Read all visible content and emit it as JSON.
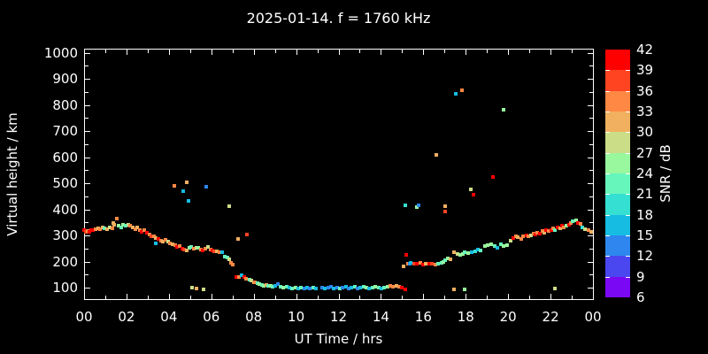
{
  "title": "2025-01-14. f = 1760 kHz",
  "x_axis": {
    "label": "UT Time / hrs",
    "tick_hours": [
      0,
      2,
      4,
      6,
      8,
      10,
      12,
      14,
      16,
      18,
      20,
      22,
      24
    ],
    "tick_labels": [
      "00",
      "02",
      "04",
      "06",
      "08",
      "10",
      "12",
      "14",
      "16",
      "18",
      "20",
      "22",
      "00"
    ],
    "minor_every_hours": 1,
    "min_hour": 0,
    "max_hour": 24
  },
  "y_axis": {
    "label": "Virtual height / km",
    "major_ticks": [
      100,
      200,
      300,
      400,
      500,
      600,
      700,
      800,
      900,
      1000
    ],
    "major_tick_labels": [
      "100",
      "200",
      "300",
      "400",
      "500",
      "600",
      "700",
      "800",
      "900",
      "1000"
    ],
    "minor_ticks": [
      150,
      250,
      350,
      450,
      550,
      650,
      750,
      850,
      950
    ],
    "min_km": 56,
    "max_km": 1015
  },
  "colorbar": {
    "label": "SNR / dB",
    "tick_values": [
      6,
      9,
      12,
      15,
      18,
      21,
      24,
      27,
      30,
      33,
      36,
      39,
      42
    ],
    "tick_labels": [
      "6",
      "9",
      "12",
      "15",
      "18",
      "21",
      "24",
      "27",
      "30",
      "33",
      "36",
      "39",
      "42"
    ],
    "segment_colors": [
      "#7B08F4",
      "#4A46F0",
      "#2E86EE",
      "#16BCE2",
      "#35E0D2",
      "#66F6BC",
      "#99F79E",
      "#CCDD88",
      "#F0B060",
      "#FF8844",
      "#FF4422",
      "#FF0000"
    ]
  },
  "colors": {
    "background": "#000000",
    "foreground": "#FFFFFF",
    "axis": "#FFFFFF"
  },
  "chart_data": {
    "type": "scatter",
    "title": "2025-01-14. f = 1760 kHz",
    "xlabel": "UT Time / hrs",
    "ylabel": "Virtual height / km",
    "zlabel": "SNR / dB",
    "xlim": [
      0,
      24
    ],
    "ylim": [
      56,
      1015
    ],
    "colorbar_range": [
      6,
      42
    ],
    "colorbar_step": 3,
    "points_format": [
      "ut_hour",
      "virtual_height_km",
      "snr_db"
    ],
    "points": [
      [
        0.0,
        320,
        40
      ],
      [
        0.08,
        315,
        37
      ],
      [
        0.17,
        318,
        34
      ],
      [
        0.25,
        312,
        40
      ],
      [
        0.33,
        319,
        40
      ],
      [
        0.42,
        322,
        40
      ],
      [
        0.54,
        324,
        34
      ],
      [
        0.65,
        328,
        31
      ],
      [
        0.76,
        324,
        34
      ],
      [
        0.87,
        330,
        31
      ],
      [
        0.98,
        327,
        22
      ],
      [
        1.09,
        324,
        31
      ],
      [
        1.21,
        332,
        28
      ],
      [
        1.32,
        328,
        34
      ],
      [
        1.39,
        348,
        31
      ],
      [
        1.43,
        339,
        31
      ],
      [
        1.55,
        365,
        34
      ],
      [
        1.63,
        336,
        25
      ],
      [
        1.74,
        332,
        22
      ],
      [
        1.85,
        339,
        25
      ],
      [
        1.96,
        336,
        22
      ],
      [
        2.07,
        341,
        28
      ],
      [
        2.18,
        336,
        34
      ],
      [
        2.29,
        330,
        31
      ],
      [
        2.4,
        324,
        34
      ],
      [
        2.51,
        332,
        31
      ],
      [
        2.62,
        319,
        34
      ],
      [
        2.73,
        313,
        40
      ],
      [
        2.84,
        321,
        34
      ],
      [
        2.96,
        310,
        40
      ],
      [
        3.07,
        305,
        34
      ],
      [
        3.18,
        298,
        37
      ],
      [
        3.29,
        295,
        34
      ],
      [
        3.37,
        268,
        16
      ],
      [
        3.4,
        290,
        31
      ],
      [
        3.51,
        288,
        40
      ],
      [
        3.62,
        280,
        34
      ],
      [
        3.73,
        276,
        31
      ],
      [
        3.84,
        282,
        34
      ],
      [
        3.95,
        275,
        28
      ],
      [
        4.06,
        270,
        34
      ],
      [
        4.17,
        265,
        31
      ],
      [
        4.28,
        262,
        34
      ],
      [
        4.4,
        255,
        40
      ],
      [
        4.51,
        258,
        34
      ],
      [
        4.62,
        248,
        40
      ],
      [
        4.73,
        245,
        37
      ],
      [
        4.84,
        242,
        31
      ],
      [
        4.95,
        252,
        25
      ],
      [
        5.06,
        256,
        22
      ],
      [
        5.17,
        250,
        34
      ],
      [
        5.28,
        254,
        28
      ],
      [
        5.39,
        252,
        25
      ],
      [
        5.5,
        246,
        34
      ],
      [
        5.6,
        244,
        40
      ],
      [
        5.72,
        249,
        34
      ],
      [
        5.84,
        257,
        28
      ],
      [
        5.95,
        246,
        34
      ],
      [
        6.05,
        243,
        40
      ],
      [
        6.15,
        240,
        37
      ],
      [
        6.28,
        238,
        31
      ],
      [
        6.4,
        236,
        34
      ],
      [
        6.51,
        237,
        16
      ],
      [
        6.65,
        220,
        22
      ],
      [
        6.75,
        215,
        22
      ],
      [
        6.85,
        207,
        28
      ],
      [
        6.92,
        195,
        34
      ],
      [
        7.0,
        188,
        34
      ],
      [
        7.17,
        142,
        40
      ],
      [
        7.31,
        139,
        34
      ],
      [
        7.45,
        148,
        16
      ],
      [
        7.55,
        139,
        40
      ],
      [
        7.65,
        134,
        34
      ],
      [
        7.79,
        130,
        22
      ],
      [
        7.9,
        126,
        28
      ],
      [
        7.26,
        287,
        31
      ],
      [
        7.68,
        304,
        37
      ],
      [
        5.1,
        99,
        28
      ],
      [
        5.32,
        96,
        31
      ],
      [
        5.62,
        93,
        28
      ],
      [
        4.24,
        490,
        34
      ],
      [
        4.69,
        470,
        16
      ],
      [
        4.84,
        505,
        31
      ],
      [
        4.94,
        433,
        16
      ],
      [
        5.77,
        487,
        13
      ],
      [
        6.86,
        411,
        28
      ],
      [
        8.0,
        122,
        31
      ],
      [
        8.07,
        120,
        34
      ],
      [
        8.18,
        117,
        22
      ],
      [
        8.28,
        113,
        25
      ],
      [
        8.38,
        111,
        22
      ],
      [
        8.49,
        108,
        25
      ],
      [
        8.6,
        111,
        31
      ],
      [
        8.7,
        106,
        22
      ],
      [
        8.8,
        108,
        25
      ],
      [
        8.91,
        103,
        22
      ],
      [
        9.02,
        106,
        16
      ],
      [
        9.16,
        113,
        13
      ],
      [
        9.26,
        102,
        22
      ],
      [
        9.4,
        100,
        25
      ],
      [
        9.54,
        102,
        22
      ],
      [
        9.68,
        100,
        16
      ],
      [
        9.82,
        98,
        22
      ],
      [
        9.96,
        100,
        25
      ],
      [
        10.1,
        98,
        16
      ],
      [
        10.24,
        99,
        22
      ],
      [
        10.38,
        98,
        13
      ],
      [
        10.52,
        100,
        16
      ],
      [
        10.66,
        98,
        13
      ],
      [
        10.8,
        100,
        22
      ],
      [
        10.94,
        98,
        16
      ],
      [
        11.22,
        100,
        13
      ],
      [
        11.36,
        98,
        16
      ],
      [
        11.5,
        100,
        13
      ],
      [
        11.64,
        102,
        13
      ],
      [
        11.78,
        98,
        16
      ],
      [
        11.92,
        100,
        13
      ],
      [
        12.06,
        97,
        22
      ],
      [
        12.2,
        100,
        13
      ],
      [
        12.34,
        102,
        16
      ],
      [
        12.48,
        97,
        13
      ],
      [
        12.62,
        100,
        16
      ],
      [
        12.76,
        102,
        22
      ],
      [
        12.9,
        97,
        13
      ],
      [
        13.04,
        100,
        16
      ],
      [
        13.18,
        102,
        22
      ],
      [
        13.32,
        100,
        25
      ],
      [
        13.46,
        98,
        16
      ],
      [
        13.6,
        100,
        22
      ],
      [
        13.74,
        102,
        25
      ],
      [
        13.88,
        100,
        22
      ],
      [
        14.02,
        98,
        16
      ],
      [
        14.16,
        100,
        22
      ],
      [
        14.3,
        102,
        25
      ],
      [
        14.44,
        106,
        34
      ],
      [
        14.58,
        102,
        34
      ],
      [
        14.72,
        106,
        31
      ],
      [
        14.86,
        102,
        34
      ],
      [
        15.0,
        100,
        40
      ],
      [
        15.14,
        94,
        40
      ],
      [
        15.07,
        181,
        31
      ],
      [
        15.21,
        224,
        40
      ],
      [
        15.28,
        192,
        34
      ],
      [
        15.35,
        192,
        13
      ],
      [
        15.42,
        195,
        16
      ],
      [
        15.56,
        190,
        37
      ],
      [
        15.7,
        192,
        40
      ],
      [
        15.84,
        195,
        34
      ],
      [
        15.98,
        188,
        40
      ],
      [
        16.12,
        192,
        31
      ],
      [
        16.26,
        190,
        40
      ],
      [
        16.4,
        190,
        37
      ],
      [
        16.55,
        188,
        34
      ],
      [
        16.7,
        192,
        22
      ],
      [
        16.85,
        195,
        22
      ],
      [
        16.95,
        200,
        25
      ],
      [
        17.05,
        205,
        22
      ],
      [
        17.15,
        212,
        25
      ],
      [
        17.3,
        208,
        31
      ],
      [
        17.45,
        237,
        31
      ],
      [
        17.6,
        229,
        28
      ],
      [
        17.72,
        225,
        25
      ],
      [
        17.85,
        230,
        25
      ],
      [
        17.95,
        235,
        22
      ],
      [
        18.1,
        232,
        25
      ],
      [
        18.3,
        235,
        16
      ],
      [
        18.45,
        240,
        19
      ],
      [
        18.57,
        246,
        16
      ],
      [
        18.7,
        242,
        22
      ],
      [
        18.9,
        258,
        25
      ],
      [
        19.05,
        263,
        25
      ],
      [
        19.2,
        266,
        25
      ],
      [
        19.35,
        260,
        22
      ],
      [
        19.5,
        252,
        16
      ],
      [
        19.65,
        265,
        22
      ],
      [
        19.8,
        258,
        25
      ],
      [
        19.95,
        262,
        25
      ],
      [
        20.1,
        280,
        28
      ],
      [
        20.24,
        291,
        40
      ],
      [
        20.35,
        295,
        34
      ],
      [
        20.47,
        292,
        31
      ],
      [
        20.6,
        288,
        34
      ],
      [
        20.72,
        295,
        34
      ],
      [
        20.85,
        300,
        40
      ],
      [
        20.95,
        298,
        34
      ],
      [
        21.08,
        300,
        28
      ],
      [
        21.19,
        308,
        34
      ],
      [
        21.29,
        304,
        40
      ],
      [
        21.38,
        311,
        34
      ],
      [
        21.49,
        308,
        40
      ],
      [
        21.6,
        316,
        34
      ],
      [
        21.69,
        311,
        31
      ],
      [
        21.79,
        319,
        40
      ],
      [
        21.91,
        316,
        34
      ],
      [
        22.02,
        322,
        40
      ],
      [
        22.11,
        327,
        34
      ],
      [
        22.21,
        322,
        22
      ],
      [
        22.33,
        330,
        40
      ],
      [
        22.44,
        327,
        31
      ],
      [
        22.53,
        336,
        40
      ],
      [
        22.63,
        332,
        34
      ],
      [
        22.75,
        338,
        25
      ],
      [
        22.86,
        341,
        40
      ],
      [
        22.95,
        347,
        34
      ],
      [
        23.05,
        353,
        22
      ],
      [
        23.19,
        358,
        25
      ],
      [
        23.3,
        349,
        40
      ],
      [
        23.41,
        345,
        34
      ],
      [
        23.51,
        330,
        19
      ],
      [
        23.64,
        324,
        28
      ],
      [
        23.78,
        319,
        34
      ],
      [
        23.91,
        315,
        31
      ],
      [
        15.14,
        414,
        19
      ],
      [
        15.68,
        407,
        25
      ],
      [
        15.78,
        414,
        13
      ],
      [
        16.61,
        608,
        31
      ],
      [
        17.02,
        412,
        31
      ],
      [
        17.04,
        390,
        37
      ],
      [
        17.53,
        844,
        16
      ],
      [
        17.81,
        856,
        34
      ],
      [
        18.25,
        476,
        28
      ],
      [
        18.37,
        455,
        40
      ],
      [
        19.29,
        524,
        40
      ],
      [
        19.78,
        780,
        25
      ],
      [
        17.43,
        94,
        31
      ],
      [
        17.95,
        94,
        25
      ],
      [
        22.2,
        95,
        28
      ]
    ]
  }
}
